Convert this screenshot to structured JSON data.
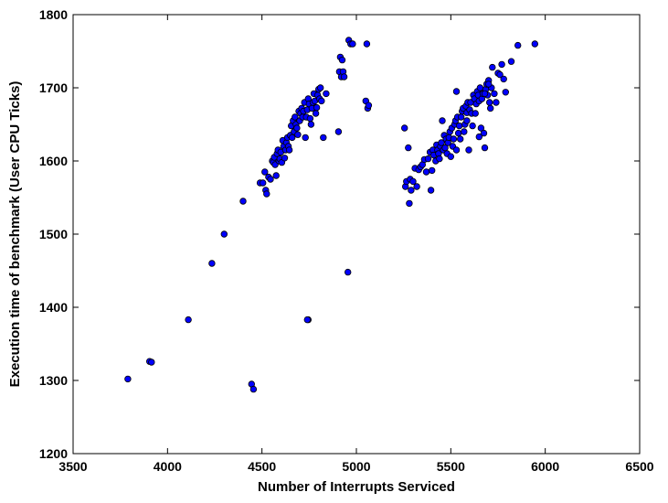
{
  "chart_data": {
    "type": "scatter",
    "title": "",
    "xlabel": "Number of Interrupts Serviced",
    "ylabel": "Execution time of benchmark (User CPU Ticks)",
    "xlim": [
      3500,
      6500
    ],
    "ylim": [
      1200,
      1800
    ],
    "xticks": [
      3500,
      4000,
      4500,
      5000,
      5500,
      6000,
      6500
    ],
    "yticks": [
      1200,
      1300,
      1400,
      1500,
      1600,
      1700,
      1800
    ],
    "grid": false,
    "legend": "none",
    "marker_color": "#0000ff",
    "marker_edge_color": "#000000",
    "series": [
      {
        "x": [
          3790,
          3905,
          3915,
          4110,
          4235,
          4300,
          4400,
          4445,
          4455,
          4490,
          4505,
          4515,
          4520,
          4525,
          4535,
          4545,
          4555,
          4560,
          4565,
          4570,
          4575,
          4580,
          4585,
          4590,
          4595,
          4600,
          4605,
          4610,
          4615,
          4620,
          4625,
          4630,
          4635,
          4640,
          4645,
          4650,
          4655,
          4660,
          4665,
          4670,
          4675,
          4680,
          4685,
          4690,
          4695,
          4700,
          4705,
          4710,
          4715,
          4720,
          4725,
          4730,
          4735,
          4740,
          4745,
          4750,
          4755,
          4760,
          4765,
          4770,
          4775,
          4780,
          4785,
          4790,
          4795,
          4800,
          4805,
          4810,
          4815,
          4825,
          4840,
          4745,
          4740,
          4905,
          4910,
          4915,
          4920,
          4925,
          4930,
          4935,
          4960,
          4970,
          4980,
          5055,
          5050,
          5060,
          5065,
          4955,
          5255,
          5260,
          5265,
          5275,
          5280,
          5285,
          5290,
          5300,
          5310,
          5320,
          5330,
          5340,
          5350,
          5360,
          5370,
          5380,
          5390,
          5400,
          5405,
          5410,
          5420,
          5425,
          5430,
          5435,
          5440,
          5445,
          5450,
          5455,
          5460,
          5465,
          5470,
          5475,
          5480,
          5485,
          5490,
          5495,
          5500,
          5505,
          5510,
          5515,
          5520,
          5525,
          5530,
          5535,
          5540,
          5545,
          5550,
          5555,
          5560,
          5565,
          5570,
          5575,
          5580,
          5585,
          5590,
          5595,
          5600,
          5605,
          5610,
          5615,
          5620,
          5625,
          5630,
          5635,
          5640,
          5645,
          5650,
          5655,
          5660,
          5665,
          5670,
          5675,
          5680,
          5685,
          5690,
          5695,
          5700,
          5705,
          5710,
          5715,
          5720,
          5730,
          5740,
          5750,
          5760,
          5770,
          5780,
          5790,
          5820,
          5855,
          5945,
          5395,
          5530,
          5585,
          5680,
          5700,
          5650
        ],
        "y": [
          1302,
          1326,
          1325,
          1383,
          1460,
          1500,
          1545,
          1295,
          1288,
          1570,
          1570,
          1585,
          1560,
          1555,
          1578,
          1575,
          1600,
          1598,
          1605,
          1595,
          1580,
          1610,
          1615,
          1600,
          1603,
          1612,
          1598,
          1628,
          1620,
          1604,
          1615,
          1625,
          1632,
          1620,
          1615,
          1635,
          1648,
          1632,
          1655,
          1640,
          1660,
          1650,
          1645,
          1636,
          1668,
          1655,
          1665,
          1672,
          1660,
          1668,
          1680,
          1632,
          1660,
          1670,
          1685,
          1678,
          1658,
          1650,
          1672,
          1680,
          1692,
          1682,
          1665,
          1673,
          1690,
          1698,
          1685,
          1700,
          1682,
          1632,
          1692,
          1383,
          1383,
          1640,
          1722,
          1742,
          1715,
          1738,
          1722,
          1715,
          1765,
          1760,
          1760,
          1760,
          1682,
          1672,
          1676,
          1448,
          1645,
          1565,
          1572,
          1618,
          1542,
          1575,
          1560,
          1572,
          1590,
          1565,
          1588,
          1592,
          1595,
          1602,
          1585,
          1603,
          1612,
          1587,
          1615,
          1608,
          1600,
          1622,
          1615,
          1610,
          1603,
          1620,
          1625,
          1655,
          1615,
          1635,
          1618,
          1630,
          1610,
          1625,
          1632,
          1640,
          1606,
          1645,
          1620,
          1630,
          1650,
          1655,
          1695,
          1660,
          1638,
          1648,
          1630,
          1660,
          1668,
          1672,
          1640,
          1650,
          1675,
          1666,
          1680,
          1615,
          1670,
          1680,
          1665,
          1648,
          1690,
          1685,
          1665,
          1678,
          1695,
          1690,
          1682,
          1700,
          1645,
          1685,
          1692,
          1638,
          1618,
          1698,
          1705,
          1690,
          1710,
          1680,
          1672,
          1700,
          1728,
          1692,
          1680,
          1720,
          1718,
          1732,
          1712,
          1694,
          1736,
          1758,
          1760,
          1560,
          1615,
          1655,
          1692,
          1705,
          1633
        ]
      }
    ]
  }
}
